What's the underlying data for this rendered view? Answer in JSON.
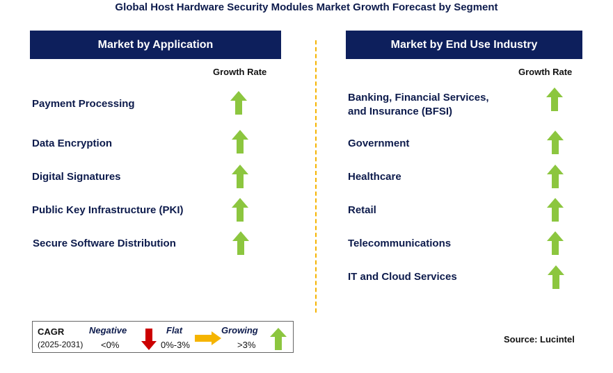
{
  "title": "Global Host Hardware Security Modules Market Growth Forecast by Segment",
  "left_panel": {
    "header": "Market by Application",
    "growth_label": "Growth Rate",
    "rows": [
      {
        "label": "Payment Processing",
        "trend": "growing"
      },
      {
        "label": "Data Encryption",
        "trend": "growing"
      },
      {
        "label": "Digital Signatures",
        "trend": "growing"
      },
      {
        "label": "Public Key Infrastructure (PKI)",
        "trend": "growing"
      },
      {
        "label": "Secure Software Distribution",
        "trend": "growing"
      }
    ]
  },
  "right_panel": {
    "header": "Market by End Use Industry",
    "growth_label": "Growth Rate",
    "rows": [
      {
        "label_line1": "Banking, Financial Services,",
        "label_line2": "and Insurance (BFSI)",
        "trend": "growing"
      },
      {
        "label": "Government",
        "trend": "growing"
      },
      {
        "label": "Healthcare",
        "trend": "growing"
      },
      {
        "label": "Retail",
        "trend": "growing"
      },
      {
        "label": "Telecommunications",
        "trend": "growing"
      },
      {
        "label": "IT and Cloud Services",
        "trend": "growing"
      }
    ]
  },
  "legend": {
    "cagr": "CAGR",
    "period": "(2025-2031)",
    "negative_label": "Negative",
    "negative_range": "<0%",
    "flat_label": "Flat",
    "flat_range": "0%-3%",
    "growing_label": "Growing",
    "growing_range": ">3%"
  },
  "source": "Source: Lucintel",
  "colors": {
    "header_bg": "#0d1f5c",
    "growing_arrow": "#8cc63f",
    "negative_arrow": "#cc0000",
    "flat_arrow": "#f5b400",
    "divider": "#f5b400"
  }
}
